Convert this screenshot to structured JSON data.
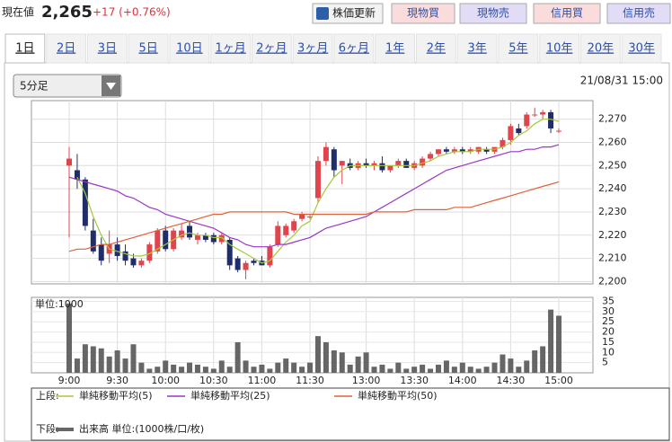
{
  "header": {
    "label": "現在値",
    "price": "2,265",
    "change": "+17 (+0.76%)",
    "buttons": [
      "株価更新",
      "現物買",
      "現物売",
      "信用買",
      "信用売"
    ]
  },
  "tabs": [
    "1日",
    "2日",
    "3日",
    "5日",
    "10日",
    "1ヶ月",
    "2ヶ月",
    "3ヶ月",
    "6ヶ月",
    "1年",
    "2年",
    "3年",
    "5年",
    "10年",
    "20年",
    "30年"
  ],
  "selected_tab": 0,
  "select": "5分足",
  "timestamp": "21/08/31 15:00",
  "legend_labels": {
    "upper": "上段:",
    "lower": "下段:"
  },
  "chart_data": [
    {
      "type": "candlestick",
      "up_color": "#e0454d",
      "down_color": "#1f2d6b",
      "open": [
        2250,
        2248,
        2244,
        2222,
        2216,
        2212,
        2216,
        2213,
        2210,
        2207,
        2209,
        2213,
        2222,
        2214,
        2219,
        2224,
        2218,
        2220,
        2220,
        2217,
        2218,
        2210,
        2205,
        2209,
        2209,
        2207,
        2216,
        2220,
        2222,
        2227,
        2228,
        2236,
        2252,
        2257,
        2250,
        2251,
        2249,
        2251,
        2250,
        2251,
        2248,
        2250,
        2252,
        2249,
        2250,
        2253,
        2255,
        2257,
        2256,
        2257,
        2256,
        2256,
        2257,
        2256,
        2258,
        2261,
        2266,
        2267,
        2272,
        2272,
        2273,
        2265
      ],
      "high": [
        2258,
        2255,
        2245,
        2227,
        2219,
        2222,
        2219,
        2216,
        2212,
        2210,
        2217,
        2223,
        2224,
        2223,
        2225,
        2226,
        2221,
        2221,
        2221,
        2221,
        2219,
        2211,
        2209,
        2210,
        2211,
        2216,
        2226,
        2225,
        2227,
        2230,
        2229,
        2254,
        2260,
        2258,
        2252,
        2253,
        2252,
        2253,
        2252,
        2254,
        2250,
        2253,
        2253,
        2252,
        2254,
        2256,
        2257,
        2258,
        2258,
        2258,
        2258,
        2258,
        2258,
        2258,
        2262,
        2268,
        2268,
        2273,
        2275,
        2274,
        2274,
        2266
      ],
      "low": [
        2219,
        2240,
        2222,
        2212,
        2207,
        2208,
        2209,
        2207,
        2206,
        2206,
        2208,
        2212,
        2213,
        2213,
        2218,
        2218,
        2216,
        2217,
        2216,
        2216,
        2205,
        2204,
        2201,
        2207,
        2207,
        2206,
        2215,
        2219,
        2221,
        2226,
        2227,
        2234,
        2250,
        2245,
        2242,
        2248,
        2248,
        2249,
        2248,
        2247,
        2247,
        2249,
        2249,
        2248,
        2249,
        2252,
        2254,
        2255,
        2255,
        2255,
        2255,
        2255,
        2255,
        2255,
        2257,
        2259,
        2263,
        2266,
        2271,
        2270,
        2264,
        2264
      ],
      "close": [
        2253,
        2244,
        2224,
        2213,
        2209,
        2216,
        2211,
        2209,
        2207,
        2209,
        2216,
        2222,
        2214,
        2222,
        2222,
        2219,
        2220,
        2218,
        2217,
        2220,
        2207,
        2205,
        2208,
        2208,
        2207,
        2215,
        2224,
        2224,
        2226,
        2229,
        2228,
        2252,
        2258,
        2248,
        2252,
        2249,
        2251,
        2250,
        2251,
        2248,
        2250,
        2252,
        2249,
        2251,
        2253,
        2255,
        2257,
        2256,
        2257,
        2256,
        2257,
        2258,
        2256,
        2258,
        2261,
        2267,
        2264,
        2272,
        2272,
        2273,
        2266,
        2265
      ],
      "series": [
        {
          "name": "単純移動平均(5)",
          "color": "#a8c83a",
          "values": [
            null,
            2245,
            2238,
            2228,
            2220,
            2214,
            2213,
            2212,
            2211,
            2211,
            2212,
            2214,
            2216,
            2218,
            2220,
            2221,
            2220,
            2220,
            2219,
            2219,
            2216,
            2214,
            2212,
            2210,
            2208,
            2209,
            2213,
            2217,
            2220,
            2224,
            2226,
            2234,
            2240,
            2245,
            2248,
            2250,
            2250,
            2250,
            2250,
            2250,
            2250,
            2250,
            2250,
            2250,
            2251,
            2252,
            2254,
            2255,
            2256,
            2256,
            2256,
            2257,
            2257,
            2257,
            2258,
            2260,
            2263,
            2265,
            2268,
            2270,
            2270,
            2269
          ]
        },
        {
          "name": "単純移動平均(25)",
          "color": "#9a35c8",
          "values": [
            2245,
            2244,
            2243,
            2242,
            2241,
            2240,
            2239,
            2237,
            2236,
            2234,
            2232,
            2231,
            2229,
            2228,
            2227,
            2226,
            2225,
            2224,
            2223,
            2221,
            2219,
            2218,
            2216,
            2215,
            2215,
            2215,
            2216,
            2216,
            2217,
            2218,
            2219,
            2221,
            2223,
            2224,
            2225,
            2226,
            2227,
            2228,
            2230,
            2232,
            2234,
            2236,
            2238,
            2240,
            2242,
            2244,
            2246,
            2248,
            2249,
            2250,
            2251,
            2252,
            2253,
            2254,
            2255,
            2256,
            2256,
            2257,
            2257,
            2258,
            2258,
            2259
          ]
        },
        {
          "name": "単純移動平均(50)",
          "color": "#e0603a",
          "values": [
            2213,
            2214,
            2214,
            2215,
            2216,
            2216,
            2217,
            2218,
            2219,
            2220,
            2221,
            2222,
            2223,
            2224,
            2225,
            2226,
            2227,
            2228,
            2229,
            2229,
            2230,
            2230,
            2230,
            2230,
            2230,
            2230,
            2230,
            2230,
            2229,
            2229,
            2229,
            2229,
            2229,
            2229,
            2229,
            2229,
            2229,
            2229,
            2230,
            2230,
            2230,
            2230,
            2230,
            2231,
            2231,
            2231,
            2231,
            2231,
            2232,
            2232,
            2232,
            2233,
            2234,
            2235,
            2236,
            2237,
            2238,
            2239,
            2240,
            2241,
            2242,
            2243
          ]
        }
      ],
      "ylim": [
        2199,
        2278
      ],
      "yticks": [
        {
          "value": 2200,
          "label": "2,200"
        },
        {
          "value": 2210,
          "label": "2,210"
        },
        {
          "value": 2220,
          "label": "2,220"
        },
        {
          "value": 2230,
          "label": "2,230"
        },
        {
          "value": 2240,
          "label": "2,240"
        },
        {
          "value": 2250,
          "label": "2,250"
        },
        {
          "value": 2260,
          "label": "2,260"
        },
        {
          "value": 2270,
          "label": "2,270"
        }
      ],
      "grid": true
    },
    {
      "type": "bar",
      "unit": "単位:1000",
      "categories": [
        "9:00",
        null,
        null,
        null,
        null,
        null,
        "9:30",
        null,
        null,
        null,
        null,
        null,
        "10:00",
        null,
        null,
        null,
        null,
        null,
        "10:30",
        null,
        null,
        null,
        null,
        null,
        "11:00",
        null,
        null,
        null,
        null,
        null,
        "11:30",
        null,
        null,
        null,
        null,
        null,
        null,
        "13:00",
        null,
        null,
        null,
        null,
        null,
        "13:30",
        null,
        null,
        null,
        null,
        null,
        "14:00",
        null,
        null,
        null,
        null,
        null,
        "14:30",
        null,
        null,
        null,
        null,
        null,
        "15:00"
      ],
      "series": [
        {
          "name": "出来高 単位:(1000株/口/枚)",
          "color": "#666666",
          "values": [
            34,
            7,
            14,
            13,
            12,
            8,
            11,
            7,
            14,
            5,
            2,
            3,
            6,
            4,
            3,
            5,
            4,
            3,
            2,
            6,
            3,
            15,
            6,
            3,
            4,
            2,
            5,
            7,
            5,
            3,
            5,
            18,
            15,
            11,
            10,
            4,
            8,
            10,
            3,
            4,
            2,
            5,
            2,
            3,
            4,
            2,
            4,
            6,
            3,
            5,
            3,
            2,
            3,
            5,
            9,
            7,
            3,
            6,
            11,
            13,
            31,
            28
          ]
        }
      ],
      "ylim": [
        0,
        37
      ],
      "yticks": [
        5,
        10,
        15,
        20,
        25,
        30,
        35
      ],
      "grid": true
    }
  ]
}
